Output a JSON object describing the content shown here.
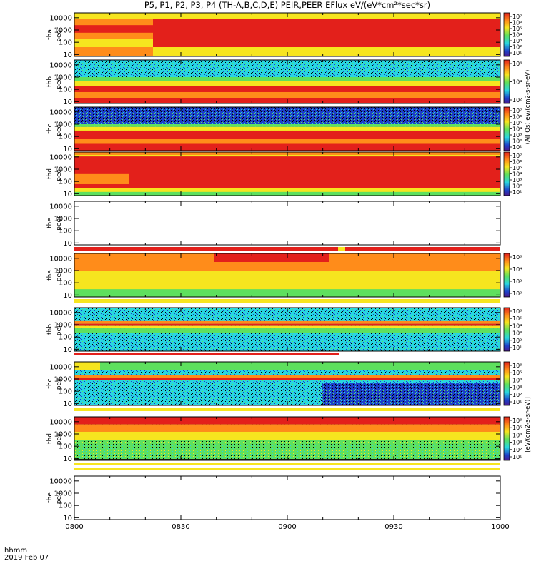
{
  "title": "P5, P1, P2, P3, P4 (TH-A,B,C,D,E) PEIR,PEER EFlux eV/(eV*cm²*sec*sr)",
  "time_axis": {
    "label_line1": "hhmm",
    "label_line2": "2019 Feb 07"
  },
  "colorbar_unit_top": "(All Qs) eV/(cm2-s-sr-eV)",
  "colorbar_unit_bottom": "[eV/(cm2-s-sr-eV)]",
  "colors": {
    "red": "#e3201b",
    "orange": "#ff8c1a",
    "yellow": "#f6e51f",
    "green": "#5ee05e",
    "cyan": "#28d6e0",
    "blue": "#1d3fc9",
    "black": "#000000",
    "purple": "#4a1a8c",
    "white": "#ffffff"
  },
  "chart_data": {
    "type": "heatmap",
    "x_tick_labels": [
      "0800",
      "0830",
      "0900",
      "0930",
      "1000"
    ],
    "xlim": [
      "08:00",
      "10:00"
    ],
    "y_scale": "log",
    "panels": [
      {
        "ylabel1": "tha",
        "ylabel2": "peer",
        "yticks": [
          "10000",
          "1000",
          "100",
          "10"
        ],
        "ylim": [
          7,
          25000
        ],
        "colorbar_ticks": [
          "10⁷",
          "10⁶",
          "10⁵",
          "10⁴",
          "10³",
          "10²",
          "10¹"
        ],
        "data_present": true
      },
      {
        "ylabel1": "thb",
        "ylabel2": "peer",
        "yticks": [
          "10000",
          "1000",
          "100",
          "10"
        ],
        "ylim": [
          7,
          25000
        ],
        "colorbar_ticks": [
          "10⁶",
          "10⁴",
          "10²"
        ],
        "data_present": true
      },
      {
        "ylabel1": "thc",
        "ylabel2": "peer",
        "yticks": [
          "10000",
          "1000",
          "100",
          "10"
        ],
        "ylim": [
          7,
          25000
        ],
        "colorbar_ticks": [
          "10⁷",
          "10⁶",
          "10⁵",
          "10⁴",
          "10³",
          "10²",
          "10¹"
        ],
        "data_present": true
      },
      {
        "ylabel1": "thd",
        "ylabel2": "peer",
        "yticks": [
          "10000",
          "1000",
          "100",
          "10"
        ],
        "ylim": [
          7,
          25000
        ],
        "colorbar_ticks": [
          "10⁷",
          "10⁶",
          "10⁵",
          "10⁴",
          "10³",
          "10²",
          "10¹"
        ],
        "data_present": true
      },
      {
        "ylabel1": "the",
        "ylabel2": "peer",
        "yticks": [
          "10000",
          "1000",
          "100",
          "10"
        ],
        "ylim": [
          7,
          25000
        ],
        "colorbar_ticks": [],
        "data_present": false
      },
      {
        "ylabel1": "tha",
        "ylabel2": "peir",
        "yticks": [
          "10000",
          "1000",
          "100",
          "10"
        ],
        "ylim": [
          7,
          25000
        ],
        "colorbar_ticks": [
          "10⁶",
          "10⁴",
          "10²",
          "10⁰"
        ],
        "data_present": true
      },
      {
        "ylabel1": "thb",
        "ylabel2": "peir",
        "yticks": [
          "10000",
          "1000",
          "100",
          "10"
        ],
        "ylim": [
          7,
          25000
        ],
        "colorbar_ticks": [
          "10⁶",
          "10⁵",
          "10⁴",
          "10³",
          "10²",
          "10¹"
        ],
        "data_present": true
      },
      {
        "ylabel1": "thc",
        "ylabel2": "peir",
        "yticks": [
          "10000",
          "1000",
          "100",
          "10"
        ],
        "ylim": [
          7,
          25000
        ],
        "colorbar_ticks": [
          "10⁶",
          "10⁵",
          "10⁴",
          "10³",
          "10²",
          "10¹"
        ],
        "data_present": true
      },
      {
        "ylabel1": "thd",
        "ylabel2": "peir",
        "yticks": [
          "10000",
          "1000",
          "100",
          "10"
        ],
        "ylim": [
          7,
          25000
        ],
        "colorbar_ticks": [
          "10⁶",
          "10⁵",
          "10⁴",
          "10³",
          "10²",
          "10¹"
        ],
        "data_present": true
      },
      {
        "ylabel1": "the",
        "ylabel2": "peir",
        "yticks": [
          "10000",
          "1000",
          "100",
          "10"
        ],
        "ylim": [
          7,
          25000
        ],
        "colorbar_ticks": [],
        "data_present": false
      }
    ]
  }
}
